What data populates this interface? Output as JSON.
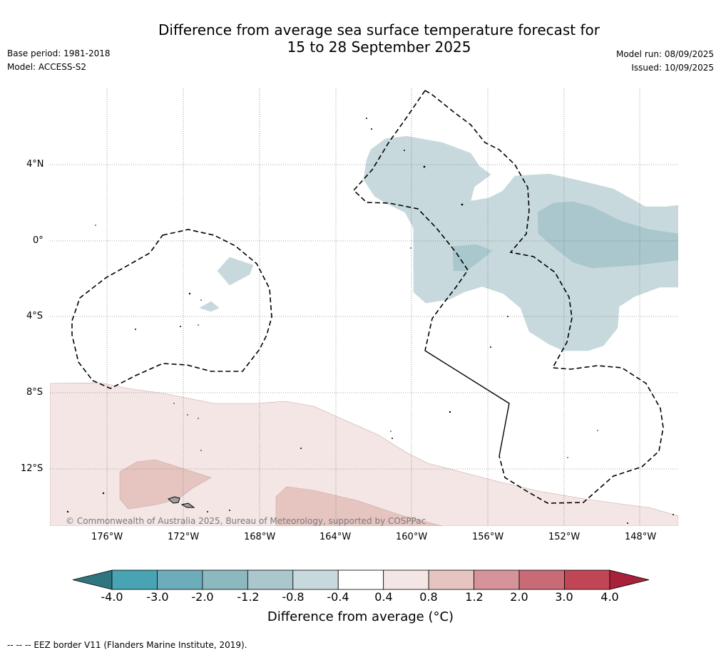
{
  "title_line1": "Difference from average sea surface temperature forecast for",
  "title_line2": "15 to 28 September 2025",
  "base_period": "Base period: 1981-2018",
  "model": "Model: ACCESS-S2",
  "model_run": "Model run: 08/09/2025",
  "issued": "Issued: 10/09/2025",
  "copyright": "© Commonwealth of Australia 2025, Bureau of Meteorology, supported by COSPPac",
  "footnote": "--  --  -- EEZ border V11 (Flanders Marine Institute, 2019).",
  "lat_labels": [
    "4°N",
    "0°",
    "4°S",
    "8°S",
    "12°S"
  ],
  "lon_labels": [
    "176°W",
    "172°W",
    "168°W",
    "164°W",
    "160°W",
    "156°W",
    "152°W",
    "148°W"
  ],
  "colorbar": {
    "title": "Difference from average (°C)",
    "tick_labels": [
      "-4.0",
      "-3.0",
      "-2.0",
      "-1.2",
      "-0.8",
      "-0.4",
      "0.4",
      "0.8",
      "1.2",
      "2.0",
      "3.0",
      "4.0"
    ],
    "colors": [
      "#2f7580",
      "#48a3b3",
      "#6dadbb",
      "#8cb8c0",
      "#a9c7cd",
      "#c7d9dd",
      "#ffffff",
      "#f4e6e5",
      "#e6c5c1",
      "#d6949a",
      "#c86b77",
      "#c04655",
      "#a8203a"
    ]
  },
  "colors": {
    "cool_light": "#c7d9dd",
    "cool_mid": "#a9c7cd",
    "warm_light": "#f4e6e5",
    "warm_mid": "#e6c5c1"
  }
}
